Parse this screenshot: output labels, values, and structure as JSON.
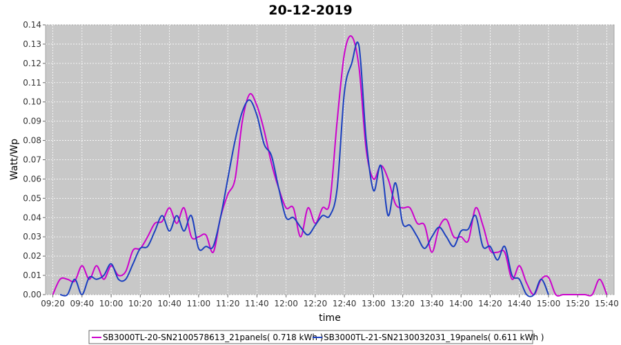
{
  "chart_data": {
    "type": "line",
    "title": "20-12-2019",
    "xlabel": "time",
    "ylabel": "Watt/Wp",
    "xlim": [
      "09:15",
      "15:45"
    ],
    "ylim": [
      0,
      0.14
    ],
    "y_ticks": [
      "0.00",
      "0.01",
      "0.02",
      "0.03",
      "0.04",
      "0.05",
      "0.06",
      "0.07",
      "0.08",
      "0.09",
      "0.10",
      "0.11",
      "0.12",
      "0.13",
      "0.14"
    ],
    "x_ticks": [
      "09:20",
      "09:40",
      "10:00",
      "10:20",
      "10:40",
      "11:00",
      "11:20",
      "11:40",
      "12:00",
      "12:20",
      "12:40",
      "13:00",
      "13:20",
      "13:40",
      "14:00",
      "14:20",
      "14:40",
      "15:00",
      "15:20",
      "15:40"
    ],
    "grid": true,
    "legend_position": "bottom",
    "colors": {
      "plot_bg": "#c8c8c8",
      "grid": "#ffffff"
    },
    "series": [
      {
        "name": "SB3000TL-20-SN2100578613_21panels",
        "legend_label": "SB3000TL-20-SN2100578613_21panels( 0.718 kWh )",
        "color": "#cc00cc",
        "x": [
          "09:20",
          "09:25",
          "09:30",
          "09:35",
          "09:40",
          "09:45",
          "09:50",
          "09:55",
          "10:00",
          "10:05",
          "10:10",
          "10:15",
          "10:20",
          "10:25",
          "10:30",
          "10:35",
          "10:40",
          "10:45",
          "10:50",
          "10:55",
          "11:00",
          "11:05",
          "11:10",
          "11:15",
          "11:20",
          "11:25",
          "11:30",
          "11:35",
          "11:40",
          "11:45",
          "11:50",
          "11:55",
          "12:00",
          "12:05",
          "12:10",
          "12:15",
          "12:20",
          "12:25",
          "12:30",
          "12:35",
          "12:40",
          "12:45",
          "12:50",
          "12:55",
          "13:00",
          "13:05",
          "13:10",
          "13:15",
          "13:20",
          "13:25",
          "13:30",
          "13:35",
          "13:40",
          "13:45",
          "13:50",
          "13:55",
          "14:00",
          "14:05",
          "14:10",
          "14:15",
          "14:20",
          "14:25",
          "14:30",
          "14:35",
          "14:40",
          "14:45",
          "14:50",
          "14:55",
          "15:00",
          "15:05",
          "15:10",
          "15:15",
          "15:20",
          "15:25",
          "15:30",
          "15:35",
          "15:40"
        ],
        "values": [
          0.0,
          0.008,
          0.008,
          0.007,
          0.015,
          0.008,
          0.015,
          0.008,
          0.015,
          0.01,
          0.012,
          0.023,
          0.024,
          0.03,
          0.037,
          0.038,
          0.045,
          0.037,
          0.045,
          0.03,
          0.03,
          0.031,
          0.022,
          0.04,
          0.052,
          0.06,
          0.09,
          0.104,
          0.098,
          0.085,
          0.068,
          0.055,
          0.045,
          0.045,
          0.03,
          0.045,
          0.037,
          0.045,
          0.048,
          0.09,
          0.125,
          0.134,
          0.118,
          0.075,
          0.06,
          0.067,
          0.06,
          0.047,
          0.045,
          0.045,
          0.037,
          0.036,
          0.022,
          0.035,
          0.039,
          0.03,
          0.03,
          0.028,
          0.045,
          0.036,
          0.023,
          0.022,
          0.022,
          0.008,
          0.015,
          0.006,
          0.0,
          0.008,
          0.009,
          0.0,
          0.0,
          0.0,
          0.0,
          0.0,
          0.0,
          0.008,
          0.0
        ]
      },
      {
        "name": "SB3000TL-21-SN2130032031_19panels",
        "legend_label": "SB3000TL-21-SN2130032031_19panels( 0.611 kWh )",
        "color": "#1a3fbf",
        "x": [
          "09:25",
          "09:30",
          "09:35",
          "09:40",
          "09:45",
          "09:50",
          "09:55",
          "10:00",
          "10:05",
          "10:10",
          "10:15",
          "10:20",
          "10:25",
          "10:30",
          "10:35",
          "10:40",
          "10:45",
          "10:50",
          "10:55",
          "11:00",
          "11:05",
          "11:10",
          "11:15",
          "11:20",
          "11:25",
          "11:30",
          "11:35",
          "11:40",
          "11:45",
          "11:50",
          "11:55",
          "12:00",
          "12:05",
          "12:10",
          "12:15",
          "12:20",
          "12:25",
          "12:30",
          "12:35",
          "12:40",
          "12:45",
          "12:50",
          "12:55",
          "13:00",
          "13:05",
          "13:10",
          "13:15",
          "13:20",
          "13:25",
          "13:30",
          "13:35",
          "13:40",
          "13:45",
          "13:50",
          "13:55",
          "14:00",
          "14:05",
          "14:10",
          "14:15",
          "14:20",
          "14:25",
          "14:30",
          "14:35",
          "14:40",
          "14:45",
          "14:50",
          "14:55",
          "15:00"
        ],
        "values": [
          0.0,
          0.0,
          0.008,
          0.0,
          0.009,
          0.008,
          0.01,
          0.016,
          0.008,
          0.008,
          0.016,
          0.024,
          0.025,
          0.033,
          0.041,
          0.033,
          0.041,
          0.033,
          0.041,
          0.024,
          0.025,
          0.025,
          0.04,
          0.06,
          0.08,
          0.095,
          0.101,
          0.093,
          0.078,
          0.072,
          0.055,
          0.04,
          0.04,
          0.035,
          0.031,
          0.036,
          0.041,
          0.041,
          0.055,
          0.105,
          0.12,
          0.129,
          0.08,
          0.054,
          0.067,
          0.041,
          0.058,
          0.037,
          0.036,
          0.03,
          0.024,
          0.03,
          0.035,
          0.03,
          0.025,
          0.033,
          0.034,
          0.041,
          0.025,
          0.025,
          0.018,
          0.025,
          0.01,
          0.008,
          0.0,
          0.0,
          0.008,
          0.0
        ]
      }
    ]
  }
}
